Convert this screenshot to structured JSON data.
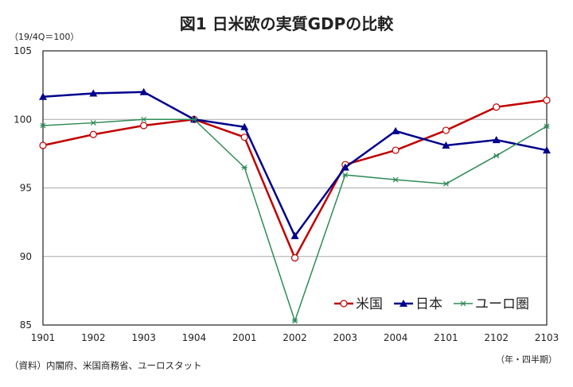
{
  "chart_data": {
    "type": "line",
    "title": "図1 日米欧の実質GDPの比較",
    "ylabel": "（19/4Q＝100）",
    "xlabel": "（年・四半期）",
    "source": "（資料）内閣府、米国商務省、ユーロスタット",
    "categories": [
      "1901",
      "1902",
      "1903",
      "1904",
      "2001",
      "2002",
      "2003",
      "2004",
      "2101",
      "2102",
      "2103"
    ],
    "ylim": [
      85,
      105
    ],
    "yticks": [
      85,
      90,
      95,
      100,
      105
    ],
    "grid": true,
    "legend_position": "bottom-right",
    "series": [
      {
        "name": "米国",
        "color": "#c00000",
        "marker": "circle",
        "values": [
          98.1,
          98.9,
          99.55,
          100,
          98.7,
          89.9,
          96.7,
          97.75,
          99.2,
          100.9,
          101.4
        ]
      },
      {
        "name": "日本",
        "color": "#00008b",
        "marker": "triangle",
        "values": [
          101.65,
          101.9,
          102.0,
          100,
          99.45,
          91.5,
          96.5,
          99.15,
          98.1,
          98.5,
          97.75
        ]
      },
      {
        "name": "ユーロ圏",
        "color": "#2e8b57",
        "marker": "x",
        "values": [
          99.55,
          99.75,
          100.0,
          100,
          96.5,
          85.3,
          95.95,
          95.6,
          95.3,
          97.35,
          99.5
        ]
      }
    ]
  }
}
